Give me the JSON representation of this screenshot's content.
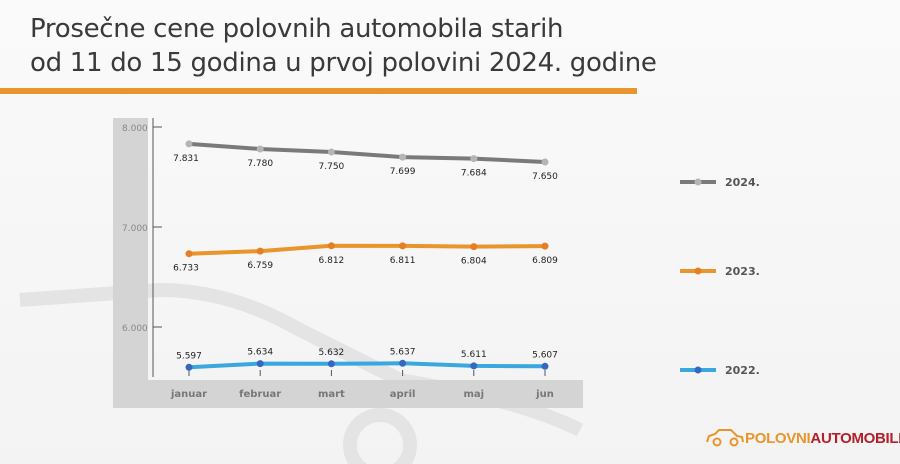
{
  "title_line1": "Prosečne cene polovnih automobila starih",
  "title_line2": "od 11 do 15 godina  u prvoj polovini 2024. godine",
  "logo": {
    "part1": "POLOVNI",
    "part2": "AUTOMOBILI"
  },
  "chart_data": {
    "type": "line",
    "title": "Prosečne cene polovnih automobila starih od 11 do 15 godina u prvoj polovini 2024. godine",
    "categories": [
      "januar",
      "februar",
      "mart",
      "april",
      "maj",
      "jun"
    ],
    "y_ticks": [
      "8.000",
      "7.000",
      "6.000"
    ],
    "y_tick_values": [
      8000,
      7000,
      6000
    ],
    "ylim": [
      5500,
      8000
    ],
    "legend_position": "right",
    "series": [
      {
        "name": "2024.",
        "color": "#7a7a7a",
        "marker": "#b5b5b5",
        "values": [
          7831,
          7780,
          7750,
          7699,
          7684,
          7650
        ],
        "labels": [
          "7.831",
          "7.780",
          "7.750",
          "7.699",
          "7.684",
          "7.650"
        ],
        "label_pos": "below"
      },
      {
        "name": "2023.",
        "color": "#e8952b",
        "marker": "#e67e22",
        "values": [
          6733,
          6759,
          6812,
          6811,
          6804,
          6809
        ],
        "labels": [
          "6.733",
          "6.759",
          "6.812",
          "6.811",
          "6.804",
          "6.809"
        ],
        "label_pos": "below"
      },
      {
        "name": "2022.",
        "color": "#3aa7df",
        "marker": "#3867c2",
        "values": [
          5597,
          5634,
          5632,
          5637,
          5611,
          5607
        ],
        "labels": [
          "5.597",
          "5.634",
          "5.632",
          "5.637",
          "5.611",
          "5.607"
        ],
        "label_pos": "above"
      }
    ]
  }
}
